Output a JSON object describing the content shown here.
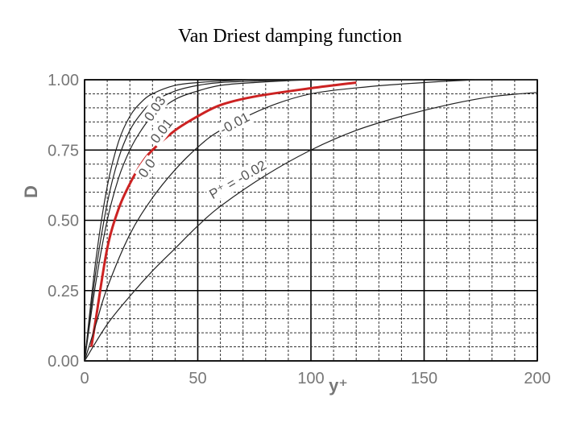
{
  "title": "Van Driest damping function",
  "chart_data": {
    "type": "line",
    "title": "Van Driest damping function",
    "xlabel": "y⁺",
    "ylabel": "D",
    "xlim": [
      0,
      200
    ],
    "ylim": [
      0,
      1
    ],
    "x_ticks": [
      "0",
      "50",
      "100",
      "150",
      "200"
    ],
    "y_ticks": [
      "0.00",
      "0.25",
      "0.50",
      "0.75",
      "1.00"
    ],
    "grid": true,
    "series": [
      {
        "name": "0.03",
        "color": "#222222",
        "highlight": false,
        "x": [
          0,
          5,
          10,
          15,
          20,
          25,
          30,
          40,
          50,
          60,
          75,
          100,
          125
        ],
        "y": [
          0,
          0.36,
          0.62,
          0.78,
          0.87,
          0.92,
          0.95,
          0.98,
          0.99,
          0.995,
          1.0,
          1.0,
          1.0
        ]
      },
      {
        "name": "",
        "color": "#222222",
        "highlight": false,
        "x": [
          0,
          5,
          10,
          15,
          20,
          25,
          30,
          40,
          50,
          60,
          75,
          100,
          130
        ],
        "y": [
          0,
          0.32,
          0.56,
          0.72,
          0.82,
          0.88,
          0.92,
          0.96,
          0.98,
          0.99,
          0.995,
          1.0,
          1.0
        ]
      },
      {
        "name": "0.01",
        "color": "#222222",
        "highlight": false,
        "x": [
          0,
          5,
          10,
          15,
          20,
          25,
          30,
          40,
          50,
          60,
          75,
          100,
          125,
          150
        ],
        "y": [
          0,
          0.28,
          0.5,
          0.65,
          0.75,
          0.82,
          0.87,
          0.93,
          0.96,
          0.98,
          0.99,
          1.0,
          1.0,
          1.0
        ]
      },
      {
        "name": "0.0",
        "color": "#cc2222",
        "highlight": true,
        "x": [
          3,
          5,
          10,
          15,
          20,
          25,
          30,
          40,
          50,
          60,
          75,
          100,
          120
        ],
        "y": [
          0.05,
          0.15,
          0.4,
          0.54,
          0.63,
          0.7,
          0.75,
          0.82,
          0.87,
          0.91,
          0.94,
          0.97,
          0.99
        ]
      },
      {
        "name": "-0.01",
        "color": "#222222",
        "highlight": false,
        "x": [
          0,
          5,
          10,
          20,
          30,
          40,
          50,
          60,
          80,
          100,
          125,
          150,
          175,
          200
        ],
        "y": [
          0,
          0.13,
          0.26,
          0.45,
          0.58,
          0.68,
          0.76,
          0.82,
          0.9,
          0.95,
          0.975,
          0.99,
          1.0,
          1.0
        ]
      },
      {
        "name": "P⁺ = -0.02",
        "color": "#222222",
        "highlight": false,
        "x": [
          0,
          10,
          20,
          30,
          40,
          50,
          60,
          80,
          100,
          120,
          140,
          160,
          180,
          200
        ],
        "y": [
          0,
          0.13,
          0.23,
          0.32,
          0.4,
          0.48,
          0.55,
          0.66,
          0.75,
          0.82,
          0.87,
          0.91,
          0.94,
          0.955
        ]
      }
    ]
  }
}
